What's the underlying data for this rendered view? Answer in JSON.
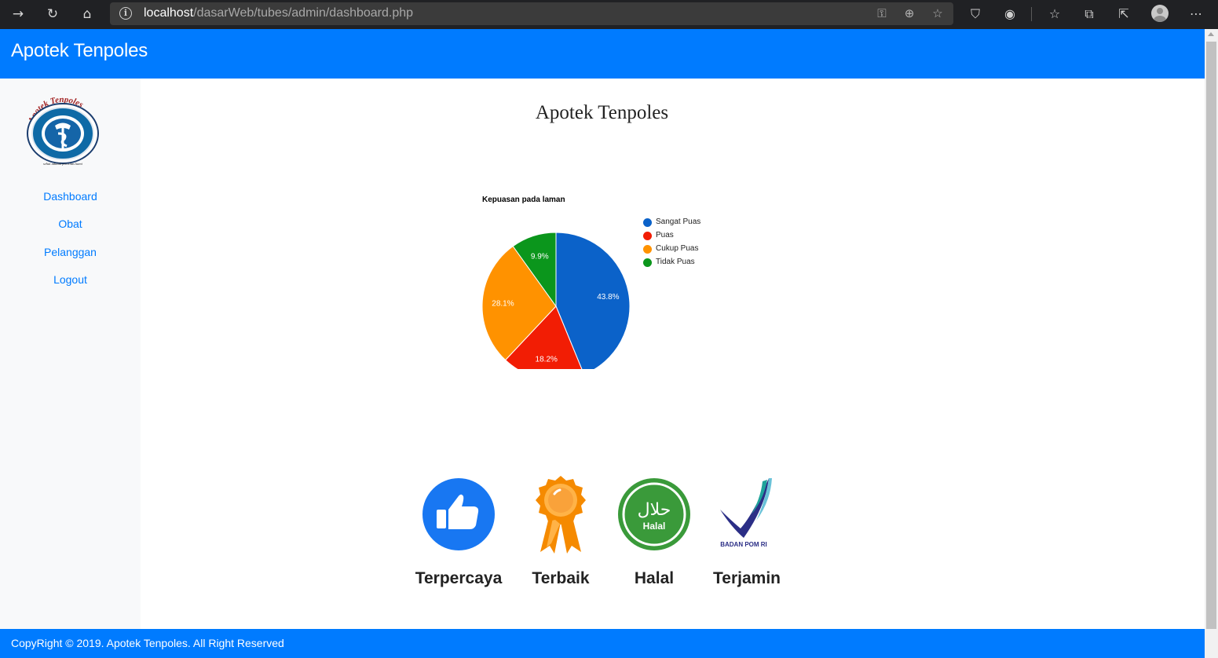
{
  "browser": {
    "url_host": "localhost",
    "url_path": "/dasarWeb/tubes/admin/dashboard.php"
  },
  "header": {
    "brand": "Apotek Tenpoles"
  },
  "sidebar": {
    "logo_text": "Apotek Tenpoles",
    "logo_tagline": "sehat adalah prioritas kami",
    "items": [
      {
        "label": "Dashboard"
      },
      {
        "label": "Obat"
      },
      {
        "label": "Pelanggan"
      },
      {
        "label": "Logout"
      }
    ]
  },
  "main": {
    "title": "Apotek Tenpoles"
  },
  "chart_data": {
    "type": "pie",
    "title": "Kepuasan pada laman",
    "legend_position": "right",
    "categories": [
      "Sangat Puas",
      "Puas",
      "Cukup Puas",
      "Tidak Puas"
    ],
    "values": [
      43.8,
      18.2,
      28.1,
      9.9
    ],
    "labels": [
      "43.8%",
      "18.2%",
      "28.1%",
      "9.9%"
    ],
    "colors": [
      "#0b62c9",
      "#f21d04",
      "#ff9200",
      "#0b961c"
    ]
  },
  "badges": [
    {
      "label": "Terpercaya",
      "icon": "thumbs-up-icon"
    },
    {
      "label": "Terbaik",
      "icon": "award-ribbon-icon"
    },
    {
      "label": "Halal",
      "icon": "halal-icon",
      "icon_text": "Halal",
      "icon_arabic": "حلال"
    },
    {
      "label": "Terjamin",
      "icon": "badan-pom-icon",
      "icon_text": "BADAN POM RI"
    }
  ],
  "footer": {
    "text": "CopyRight © 2019. Apotek Tenpoles. All Right Reserved"
  }
}
